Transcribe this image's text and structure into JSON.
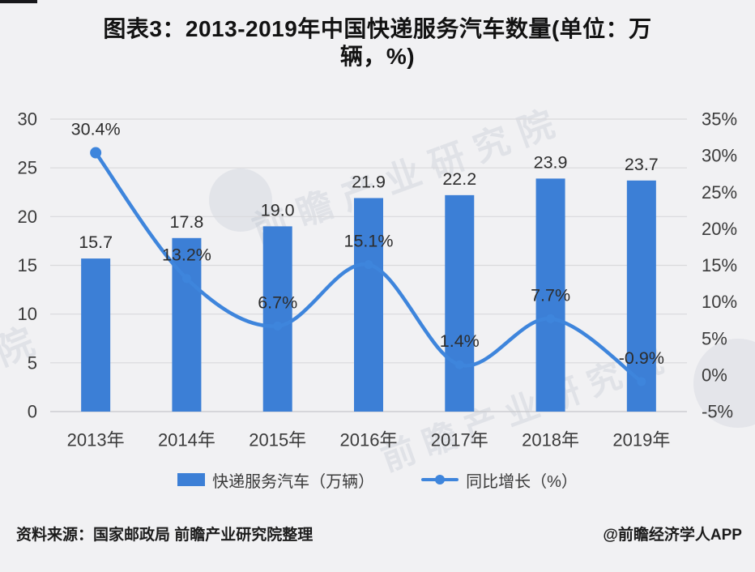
{
  "colors": {
    "background": "#f1f1f3",
    "bar": "#3c7fd6",
    "line": "#3e85dc",
    "grid": "#d9d9dc",
    "grid_zero": "#c7c7ca",
    "tick_text": "#3b3b3b",
    "data_label_text": "#2d2d2d",
    "title_text": "#121212"
  },
  "title": {
    "line1": "图表3：2013-2019年中国快递服务汽车数量(单位：万",
    "line2": "辆，%)"
  },
  "chart_data": {
    "type": "combo-bar-line",
    "categories": [
      "2013年",
      "2014年",
      "2015年",
      "2016年",
      "2017年",
      "2018年",
      "2019年"
    ],
    "series": [
      {
        "name": "快递服务汽车（万辆）",
        "type": "bar",
        "axis": "left",
        "values": [
          15.7,
          17.8,
          19.0,
          21.9,
          22.2,
          23.9,
          23.7
        ],
        "labels": [
          "15.7",
          "17.8",
          "19.0",
          "21.9",
          "22.2",
          "23.9",
          "23.7"
        ]
      },
      {
        "name": "同比增长（%）",
        "type": "line",
        "axis": "right",
        "values": [
          30.4,
          13.2,
          6.7,
          15.1,
          1.4,
          7.7,
          -0.9
        ],
        "labels": [
          "30.4%",
          "13.2%",
          "6.7%",
          "15.1%",
          "1.4%",
          "7.7%",
          "-0.9%"
        ]
      }
    ],
    "left_axis": {
      "min": 0,
      "max": 30,
      "step": 5,
      "ticks": [
        "0",
        "5",
        "10",
        "15",
        "20",
        "25",
        "30"
      ]
    },
    "right_axis": {
      "min": -5,
      "max": 35,
      "step": 5,
      "ticks": [
        "-5%",
        "0%",
        "5%",
        "10%",
        "15%",
        "20%",
        "25%",
        "30%",
        "35%"
      ]
    },
    "grid": "horizontal",
    "legend_position": "bottom"
  },
  "legend": {
    "bar_label": "快递服务汽车（万辆）",
    "line_label": "同比增长（%）"
  },
  "footer": {
    "source": "资料来源：国家邮政局 前瞻产业研究院整理",
    "credit": "@前瞻经济学人APP"
  },
  "watermark": {
    "text": "前瞻产业研究院",
    "short": "院"
  }
}
